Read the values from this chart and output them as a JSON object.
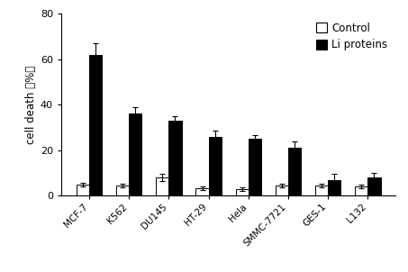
{
  "categories": [
    "MCF-7",
    "K562",
    "DU145",
    "HT-29",
    "Hela",
    "SMMC-7721",
    "GES-1",
    "L132"
  ],
  "control_values": [
    5.0,
    4.5,
    8.0,
    3.5,
    3.0,
    4.5,
    4.5,
    4.0
  ],
  "liprotein_values": [
    62.0,
    36.0,
    33.0,
    26.0,
    25.0,
    21.0,
    7.0,
    8.0
  ],
  "control_errors": [
    0.8,
    0.8,
    1.5,
    0.8,
    0.8,
    0.8,
    0.8,
    0.8
  ],
  "liprotein_errors": [
    5.0,
    3.0,
    2.0,
    2.5,
    1.5,
    3.0,
    2.5,
    2.0
  ],
  "ylabel": "cell death （%）",
  "ylim": [
    0,
    80
  ],
  "yticks": [
    0,
    20,
    40,
    60,
    80
  ],
  "bar_width": 0.32,
  "control_color": "#ffffff",
  "liprotein_color": "#000000",
  "control_label": "Control",
  "liprotein_label": "Li proteins",
  "figure_width": 4.53,
  "figure_height": 3.02,
  "dpi": 100
}
